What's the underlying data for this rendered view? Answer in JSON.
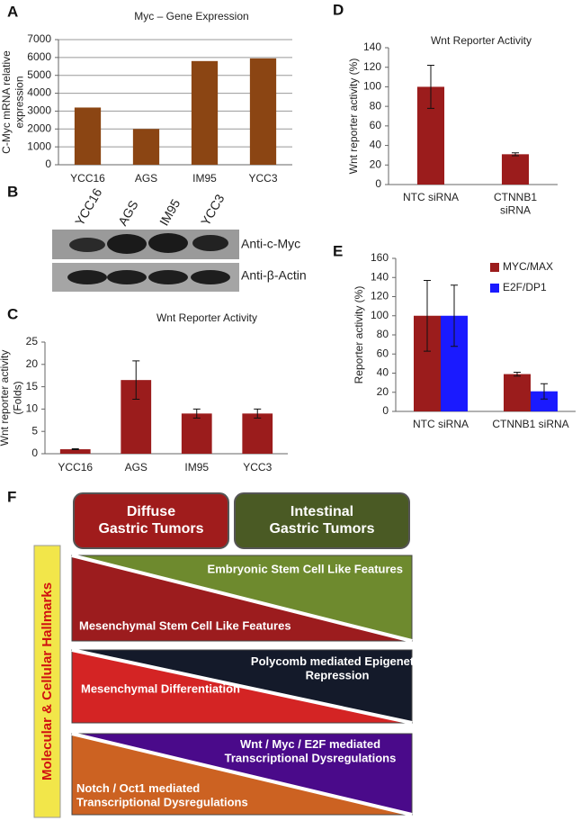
{
  "chart_data": [
    {
      "type": "bar",
      "label": "A",
      "title": "Myc – Gene Expression",
      "ylabel": "C-Myc mRNA relative\nexpression",
      "categories": [
        "YCC16",
        "AGS",
        "IM95",
        "YCC3"
      ],
      "values": [
        3200,
        2000,
        5800,
        5950
      ],
      "color": "#8b4513",
      "ylim": [
        0,
        7000
      ],
      "yticks": [
        0,
        1000,
        2000,
        3000,
        4000,
        5000,
        6000,
        7000
      ],
      "grid": true
    },
    {
      "type": "bar",
      "label": "C",
      "title": "Wnt Reporter Activity",
      "ylabel": "Wnt reporter activity\n(Folds)",
      "categories": [
        "YCC16",
        "AGS",
        "IM95",
        "YCC3"
      ],
      "values": [
        1,
        16.5,
        9,
        9
      ],
      "errors": [
        0.1,
        4.3,
        1,
        1
      ],
      "color": "#9b1c1c",
      "ylim": [
        0,
        25
      ],
      "yticks": [
        0,
        5,
        10,
        15,
        20,
        25
      ],
      "grid": false
    },
    {
      "type": "bar",
      "label": "D",
      "title": "Wnt Reporter Activity",
      "ylabel": "Wnt  reporter activity (%)",
      "categories": [
        "NTC siRNA",
        "CTNNB1\nsiRNA"
      ],
      "values": [
        100,
        31
      ],
      "errors": [
        22,
        1.5
      ],
      "color": "#9b1c1c",
      "ylim": [
        0,
        140
      ],
      "yticks": [
        0,
        20,
        40,
        60,
        80,
        100,
        120,
        140
      ],
      "grid": false
    },
    {
      "type": "bar",
      "label": "E",
      "ylabel": "Reporter activity (%)",
      "categories": [
        "NTC siRNA",
        "CTNNB1 siRNA"
      ],
      "series": [
        {
          "name": "MYC/MAX",
          "color": "#9b1c1c",
          "values": [
            100,
            39
          ],
          "errors": [
            37,
            2
          ]
        },
        {
          "name": "E2F/DP1",
          "color": "#1a1aff",
          "values": [
            100,
            21
          ],
          "errors": [
            32,
            8
          ]
        }
      ],
      "ylim": [
        0,
        160
      ],
      "yticks": [
        0,
        20,
        40,
        60,
        80,
        100,
        120,
        140,
        160
      ],
      "grid": false,
      "legend": "top-right"
    }
  ],
  "blot": {
    "label": "B",
    "lanes": [
      "YCC16",
      "AGS",
      "IM95",
      "YCC3"
    ],
    "rows": [
      "Anti-c-Myc",
      "Anti-β-Actin"
    ]
  },
  "diagram": {
    "label": "F",
    "side_label": "Molecular & Cellular Hallmarks",
    "headers": [
      "Diffuse\nGastric Tumors",
      "Intestinal\nGastric Tumors"
    ],
    "bands": [
      {
        "top": "Embryonic Stem Cell Like Features",
        "bottom": "Mesenchymal Stem Cell Like Features"
      },
      {
        "top": "Polycomb mediated Epigenetic\nRepression",
        "bottom": "Mesenchymal Differentiation"
      },
      {
        "top": "Wnt / Myc / E2F mediated\nTranscriptional Dysregulations",
        "bottom": "Notch / Oct1 mediated\nTranscriptional Dysregulations"
      }
    ]
  }
}
